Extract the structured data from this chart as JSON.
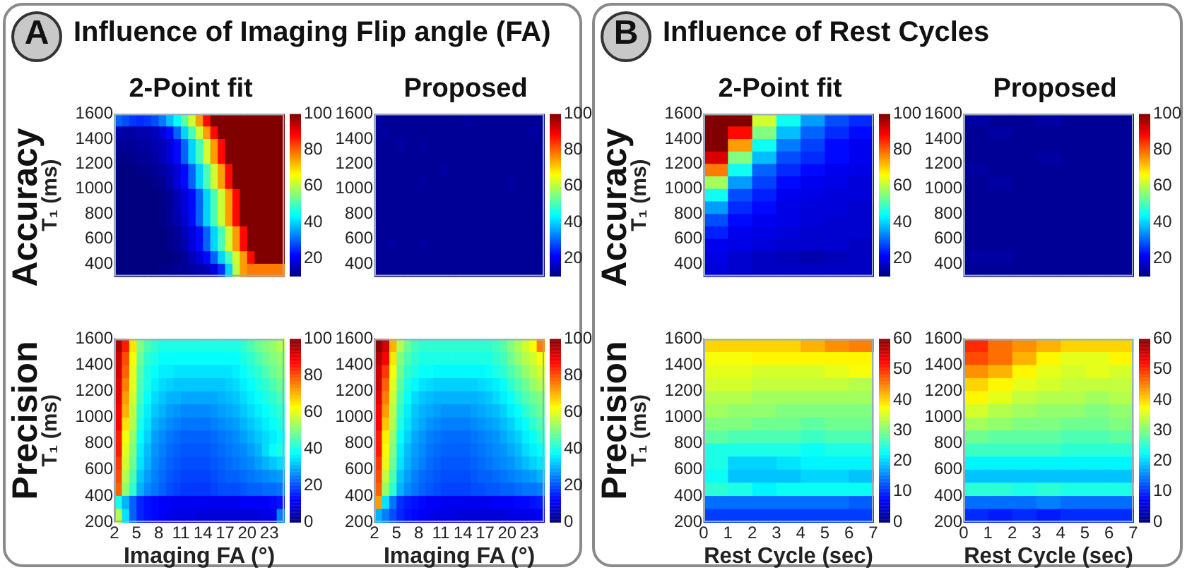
{
  "chart_data": [
    {
      "type": "heatmap",
      "title": "2-Point fit",
      "ylabel": "T₁ (ms)",
      "annotations": [
        "A",
        "Influence of Imaging Flip angle (FA)",
        "Accuracy"
      ],
      "tick_labels": "y",
      "xlim": [
        2,
        25
      ],
      "ylim": [
        300,
        1600
      ],
      "yticks": [
        400,
        600,
        800,
        1000,
        1200,
        1400,
        1600
      ],
      "clim": [
        10,
        100
      ],
      "cticks": [
        20,
        40,
        60,
        80,
        100
      ],
      "cells": [
        [
          30,
          28,
          26,
          25,
          26,
          28,
          32,
          38,
          44,
          52,
          62,
          75,
          88,
          100,
          100,
          100,
          100,
          100,
          100,
          100,
          100,
          100,
          100
        ],
        [
          14,
          13,
          13,
          14,
          14,
          15,
          18,
          22,
          30,
          40,
          50,
          62,
          75,
          88,
          100,
          100,
          100,
          100,
          100,
          100,
          100,
          100,
          100
        ],
        [
          12,
          12,
          12,
          13,
          13,
          14,
          15,
          18,
          22,
          30,
          40,
          50,
          62,
          75,
          88,
          100,
          100,
          100,
          100,
          100,
          100,
          100,
          100
        ],
        [
          11,
          11,
          11,
          12,
          12,
          13,
          15,
          18,
          22,
          30,
          40,
          50,
          62,
          75,
          88,
          100,
          100,
          100,
          100,
          100,
          100,
          100,
          100
        ],
        [
          10,
          10,
          10,
          11,
          11,
          12,
          13,
          15,
          18,
          22,
          30,
          40,
          50,
          62,
          75,
          88,
          100,
          100,
          100,
          100,
          100,
          100,
          100
        ],
        [
          10,
          10,
          10,
          10,
          10,
          11,
          12,
          14,
          18,
          22,
          30,
          40,
          50,
          62,
          75,
          88,
          100,
          100,
          100,
          100,
          100,
          100,
          100
        ],
        [
          10,
          10,
          10,
          10,
          10,
          10,
          11,
          12,
          15,
          18,
          22,
          30,
          40,
          50,
          62,
          75,
          88,
          100,
          100,
          100,
          100,
          100,
          100
        ],
        [
          10,
          10,
          10,
          10,
          10,
          10,
          11,
          12,
          15,
          18,
          22,
          30,
          40,
          50,
          62,
          75,
          88,
          100,
          100,
          100,
          100,
          100,
          100
        ],
        [
          10,
          10,
          10,
          10,
          10,
          10,
          11,
          12,
          14,
          17,
          22,
          30,
          40,
          50,
          62,
          75,
          88,
          100,
          100,
          100,
          100,
          100,
          100
        ],
        [
          10,
          10,
          10,
          10,
          10,
          10,
          10,
          11,
          12,
          15,
          18,
          22,
          30,
          40,
          50,
          62,
          75,
          88,
          100,
          100,
          100,
          100,
          100
        ],
        [
          10,
          10,
          10,
          10,
          10,
          10,
          10,
          11,
          12,
          14,
          18,
          22,
          30,
          40,
          50,
          62,
          75,
          88,
          100,
          100,
          100,
          100,
          100
        ],
        [
          10,
          10,
          10,
          10,
          10,
          10,
          10,
          10,
          11,
          12,
          15,
          18,
          22,
          30,
          40,
          50,
          62,
          75,
          88,
          100,
          100,
          100,
          100
        ],
        [
          10,
          10,
          10,
          10,
          10,
          10,
          11,
          11,
          12,
          12,
          13,
          14,
          15,
          18,
          25,
          40,
          60,
          75,
          78,
          78,
          78,
          78,
          78
        ]
      ]
    },
    {
      "type": "heatmap",
      "title": "Proposed",
      "tick_labels": "y",
      "xlim": [
        2,
        25
      ],
      "ylim": [
        300,
        1600
      ],
      "yticks": [
        400,
        600,
        800,
        1000,
        1200,
        1400,
        1600
      ],
      "clim": [
        10,
        100
      ],
      "cticks": [
        20,
        40,
        60,
        80,
        100
      ],
      "cells": [
        [
          13,
          12,
          12,
          12,
          12,
          12,
          12,
          12,
          12,
          12,
          12,
          12,
          13,
          12,
          12,
          12,
          12,
          12,
          12,
          12,
          12,
          12,
          12
        ],
        [
          12,
          13,
          12,
          12,
          12,
          12,
          12,
          12,
          12,
          12,
          12,
          12,
          12,
          12,
          12,
          12,
          12,
          12,
          12,
          12,
          12,
          13,
          12
        ],
        [
          12,
          12,
          12,
          13,
          12,
          12,
          13,
          12,
          12,
          12,
          12,
          12,
          12,
          12,
          12,
          12,
          12,
          12,
          12,
          12,
          12,
          12,
          12
        ],
        [
          12,
          12,
          12,
          12,
          12,
          12,
          12,
          12,
          12,
          12,
          12,
          12,
          12,
          12,
          12,
          12,
          12,
          12,
          12,
          12,
          12,
          12,
          12
        ],
        [
          12,
          12,
          12,
          12,
          12,
          12,
          12,
          12,
          12,
          13,
          12,
          12,
          12,
          12,
          12,
          12,
          12,
          12,
          12,
          12,
          12,
          12,
          12
        ],
        [
          12,
          12,
          12,
          12,
          12,
          12,
          13,
          12,
          12,
          12,
          12,
          12,
          12,
          12,
          12,
          12,
          12,
          12,
          13,
          12,
          12,
          12,
          12
        ],
        [
          12,
          12,
          12,
          12,
          12,
          12,
          12,
          12,
          12,
          12,
          12,
          12,
          12,
          12,
          12,
          12,
          12,
          12,
          12,
          12,
          12,
          12,
          12
        ],
        [
          12,
          12,
          12,
          12,
          12,
          12,
          12,
          12,
          12,
          12,
          12,
          12,
          12,
          12,
          12,
          12,
          12,
          12,
          12,
          12,
          12,
          12,
          12
        ],
        [
          12,
          12,
          12,
          12,
          12,
          12,
          12,
          12,
          12,
          12,
          12,
          12,
          12,
          12,
          12,
          12,
          12,
          12,
          12,
          12,
          12,
          12,
          12
        ],
        [
          12,
          12,
          12,
          12,
          12,
          12,
          12,
          12,
          12,
          12,
          12,
          12,
          12,
          12,
          12,
          12,
          12,
          12,
          12,
          12,
          12,
          12,
          12
        ],
        [
          12,
          12,
          13,
          12,
          12,
          12,
          13,
          12,
          12,
          12,
          12,
          12,
          12,
          12,
          12,
          12,
          12,
          12,
          12,
          12,
          12,
          12,
          12
        ],
        [
          12,
          12,
          12,
          12,
          12,
          12,
          12,
          12,
          12,
          12,
          12,
          12,
          12,
          12,
          12,
          12,
          12,
          12,
          12,
          12,
          12,
          12,
          12
        ],
        [
          12,
          12,
          12,
          12,
          12,
          12,
          12,
          12,
          12,
          12,
          12,
          12,
          12,
          12,
          12,
          12,
          12,
          12,
          12,
          12,
          12,
          12,
          12
        ]
      ]
    },
    {
      "type": "heatmap",
      "xlabel": "Imaging FA (°)",
      "ylabel": "T₁ (ms)",
      "annotations": [
        "Precision"
      ],
      "xlim": [
        2,
        25
      ],
      "xticks": [
        2,
        5,
        8,
        11,
        14,
        17,
        20,
        23
      ],
      "ylim": [
        200,
        1600
      ],
      "yticks": [
        200,
        400,
        600,
        800,
        1000,
        1200,
        1400,
        1600
      ],
      "clim": [
        0,
        100
      ],
      "cticks": [
        0,
        20,
        40,
        60,
        80,
        100
      ],
      "cells": [
        [
          95,
          85,
          65,
          50,
          45,
          42,
          40,
          40,
          40,
          40,
          40,
          40,
          40,
          40,
          40,
          40,
          40,
          42,
          45,
          48,
          50,
          52,
          55
        ],
        [
          92,
          80,
          62,
          48,
          42,
          40,
          38,
          38,
          38,
          38,
          38,
          38,
          38,
          38,
          38,
          38,
          38,
          40,
          42,
          45,
          48,
          50,
          52
        ],
        [
          92,
          78,
          60,
          46,
          40,
          38,
          36,
          36,
          35,
          35,
          35,
          35,
          35,
          35,
          35,
          35,
          36,
          38,
          40,
          42,
          45,
          48,
          50
        ],
        [
          90,
          75,
          60,
          45,
          40,
          36,
          34,
          33,
          32,
          32,
          32,
          32,
          32,
          32,
          32,
          33,
          34,
          36,
          38,
          40,
          42,
          45,
          48
        ],
        [
          90,
          72,
          58,
          44,
          38,
          34,
          32,
          30,
          30,
          29,
          29,
          29,
          29,
          29,
          30,
          31,
          32,
          34,
          36,
          38,
          40,
          42,
          45
        ],
        [
          88,
          70,
          56,
          42,
          36,
          32,
          30,
          28,
          27,
          26,
          26,
          26,
          26,
          27,
          28,
          29,
          30,
          32,
          34,
          36,
          38,
          40,
          42
        ],
        [
          88,
          65,
          55,
          40,
          35,
          30,
          28,
          26,
          25,
          24,
          24,
          24,
          24,
          25,
          26,
          27,
          28,
          30,
          32,
          34,
          36,
          38,
          40
        ],
        [
          85,
          62,
          52,
          38,
          33,
          28,
          26,
          24,
          23,
          22,
          22,
          22,
          22,
          23,
          24,
          25,
          26,
          28,
          30,
          32,
          34,
          36,
          38
        ],
        [
          85,
          60,
          50,
          36,
          31,
          27,
          25,
          23,
          22,
          21,
          21,
          21,
          21,
          22,
          23,
          24,
          25,
          26,
          28,
          30,
          34,
          38,
          40
        ],
        [
          82,
          58,
          48,
          35,
          30,
          26,
          24,
          22,
          21,
          20,
          20,
          20,
          20,
          21,
          22,
          23,
          24,
          25,
          26,
          28,
          30,
          32,
          34
        ],
        [
          80,
          55,
          45,
          32,
          28,
          25,
          23,
          21,
          20,
          19,
          19,
          19,
          19,
          20,
          21,
          22,
          22,
          23,
          24,
          25,
          26,
          27,
          28
        ],
        [
          78,
          52,
          42,
          30,
          26,
          24,
          22,
          20,
          19,
          18,
          18,
          18,
          18,
          19,
          20,
          20,
          20,
          21,
          22,
          22,
          23,
          23,
          24
        ],
        [
          40,
          30,
          22,
          16,
          14,
          13,
          12,
          12,
          11,
          11,
          11,
          11,
          11,
          11,
          11,
          11,
          11,
          12,
          12,
          12,
          12,
          13,
          14
        ],
        [
          55,
          35,
          22,
          16,
          14,
          13,
          12,
          11,
          10,
          10,
          10,
          9,
          9,
          9,
          9,
          9,
          9,
          9,
          9,
          9,
          10,
          10,
          25
        ]
      ]
    },
    {
      "type": "heatmap",
      "xlabel": "Imaging FA (°)",
      "xlim": [
        2,
        25
      ],
      "xticks": [
        2,
        5,
        8,
        11,
        14,
        17,
        20,
        23
      ],
      "ylim": [
        200,
        1600
      ],
      "yticks": [
        200,
        400,
        600,
        800,
        1000,
        1200,
        1400,
        1600
      ],
      "clim": [
        0,
        100
      ],
      "cticks": [
        0,
        20,
        40,
        60,
        80,
        100
      ],
      "cells": [
        [
          98,
          92,
          70,
          55,
          48,
          44,
          42,
          42,
          42,
          42,
          42,
          42,
          42,
          42,
          42,
          42,
          44,
          46,
          50,
          54,
          58,
          62,
          75
        ],
        [
          95,
          88,
          65,
          50,
          45,
          42,
          40,
          40,
          40,
          40,
          40,
          40,
          40,
          40,
          40,
          40,
          42,
          44,
          48,
          52,
          55,
          58,
          62
        ],
        [
          92,
          82,
          62,
          48,
          42,
          40,
          38,
          38,
          37,
          37,
          37,
          37,
          37,
          37,
          37,
          38,
          40,
          42,
          45,
          48,
          52,
          55,
          58
        ],
        [
          92,
          78,
          60,
          46,
          40,
          37,
          35,
          34,
          33,
          33,
          33,
          33,
          33,
          33,
          34,
          35,
          36,
          38,
          42,
          45,
          48,
          52,
          55
        ],
        [
          90,
          75,
          58,
          44,
          38,
          34,
          32,
          31,
          30,
          30,
          30,
          30,
          30,
          30,
          31,
          32,
          34,
          36,
          38,
          42,
          45,
          48,
          50
        ],
        [
          88,
          72,
          56,
          42,
          36,
          32,
          30,
          29,
          28,
          27,
          27,
          27,
          27,
          28,
          29,
          30,
          31,
          33,
          36,
          38,
          42,
          45,
          48
        ],
        [
          88,
          68,
          55,
          40,
          35,
          31,
          29,
          27,
          26,
          25,
          25,
          25,
          25,
          26,
          27,
          28,
          29,
          31,
          33,
          36,
          38,
          42,
          45
        ],
        [
          85,
          64,
          52,
          38,
          33,
          29,
          27,
          25,
          24,
          23,
          23,
          23,
          23,
          24,
          25,
          26,
          27,
          29,
          31,
          33,
          36,
          38,
          42
        ],
        [
          85,
          62,
          50,
          36,
          31,
          28,
          26,
          24,
          23,
          22,
          22,
          22,
          22,
          23,
          24,
          25,
          26,
          27,
          29,
          31,
          34,
          36,
          38
        ],
        [
          82,
          60,
          48,
          35,
          30,
          27,
          25,
          23,
          22,
          21,
          21,
          21,
          21,
          22,
          23,
          24,
          25,
          26,
          27,
          29,
          31,
          33,
          35
        ],
        [
          80,
          56,
          45,
          32,
          28,
          25,
          23,
          22,
          21,
          20,
          20,
          20,
          20,
          21,
          22,
          22,
          23,
          24,
          25,
          26,
          27,
          28,
          30
        ],
        [
          78,
          52,
          42,
          30,
          26,
          24,
          22,
          21,
          20,
          19,
          19,
          19,
          19,
          20,
          20,
          21,
          21,
          22,
          22,
          23,
          24,
          24,
          25
        ],
        [
          72,
          35,
          24,
          17,
          15,
          14,
          13,
          12,
          12,
          11,
          11,
          11,
          11,
          11,
          11,
          11,
          12,
          12,
          12,
          13,
          13,
          14,
          15
        ],
        [
          30,
          25,
          20,
          16,
          14,
          13,
          12,
          11,
          10,
          10,
          10,
          9,
          9,
          9,
          9,
          9,
          9,
          9,
          10,
          10,
          10,
          11,
          12
        ]
      ]
    },
    {
      "type": "heatmap",
      "title": "2-Point fit",
      "ylabel": "T₁ (ms)",
      "annotations": [
        "B",
        "Influence of Rest Cycles",
        "Accuracy"
      ],
      "tick_labels": "y",
      "xlim": [
        0,
        7
      ],
      "ylim": [
        300,
        1600
      ],
      "yticks": [
        400,
        600,
        800,
        1000,
        1200,
        1400,
        1600
      ],
      "clim": [
        10,
        100
      ],
      "cticks": [
        20,
        40,
        60,
        80,
        100
      ],
      "cells": [
        [
          100,
          100,
          62,
          45,
          35,
          28,
          25
        ],
        [
          100,
          88,
          55,
          38,
          30,
          25,
          22
        ],
        [
          100,
          75,
          45,
          32,
          27,
          22,
          20
        ],
        [
          92,
          55,
          38,
          28,
          25,
          22,
          20
        ],
        [
          78,
          45,
          30,
          25,
          22,
          20,
          19
        ],
        [
          58,
          35,
          27,
          22,
          20,
          19,
          18
        ],
        [
          45,
          28,
          24,
          20,
          19,
          18,
          18
        ],
        [
          35,
          25,
          22,
          19,
          18,
          18,
          17
        ],
        [
          28,
          22,
          20,
          19,
          18,
          17,
          17
        ],
        [
          24,
          20,
          19,
          18,
          17,
          17,
          17
        ],
        [
          20,
          19,
          18,
          17,
          17,
          17,
          16
        ],
        [
          19,
          17,
          16,
          15,
          14,
          15,
          16
        ],
        [
          18,
          17,
          16,
          16,
          16,
          16,
          16
        ]
      ]
    },
    {
      "type": "heatmap",
      "title": "Proposed",
      "tick_labels": "y",
      "xlim": [
        0,
        7
      ],
      "ylim": [
        300,
        1600
      ],
      "yticks": [
        400,
        600,
        800,
        1000,
        1200,
        1400,
        1600
      ],
      "clim": [
        10,
        100
      ],
      "cticks": [
        20,
        40,
        60,
        80,
        100
      ],
      "cells": [
        [
          13,
          12,
          12,
          13,
          12,
          12,
          12
        ],
        [
          12,
          13,
          12,
          12,
          12,
          12,
          12
        ],
        [
          12,
          12,
          12,
          12,
          12,
          12,
          12
        ],
        [
          12,
          12,
          12,
          13,
          12,
          12,
          12
        ],
        [
          13,
          12,
          12,
          12,
          12,
          12,
          12
        ],
        [
          12,
          13,
          12,
          12,
          12,
          12,
          12
        ],
        [
          12,
          12,
          12,
          12,
          12,
          12,
          12
        ],
        [
          12,
          12,
          12,
          12,
          12,
          12,
          12
        ],
        [
          12,
          12,
          12,
          12,
          12,
          12,
          12
        ],
        [
          12,
          12,
          12,
          12,
          12,
          12,
          12
        ],
        [
          12,
          12,
          12,
          12,
          12,
          12,
          12
        ],
        [
          13,
          13,
          12,
          12,
          12,
          12,
          12
        ],
        [
          12,
          12,
          12,
          12,
          12,
          12,
          12
        ]
      ]
    },
    {
      "type": "heatmap",
      "xlabel": "Rest Cycle (sec)",
      "ylabel": "T₁ (ms)",
      "annotations": [
        "Precision"
      ],
      "xlim": [
        0,
        7
      ],
      "xticks": [
        0,
        1,
        2,
        3,
        4,
        5,
        6,
        7
      ],
      "ylim": [
        200,
        1600
      ],
      "yticks": [
        200,
        400,
        600,
        800,
        1000,
        1200,
        1400,
        1600
      ],
      "clim": [
        0,
        60
      ],
      "cticks": [
        0,
        10,
        20,
        30,
        40,
        50,
        60
      ],
      "cells": [
        [
          40,
          40,
          40,
          40,
          42,
          44,
          45
        ],
        [
          37,
          37,
          38,
          38,
          38,
          38,
          38
        ],
        [
          36,
          36,
          35,
          35,
          35,
          36,
          37
        ],
        [
          35,
          35,
          34,
          34,
          34,
          34,
          33
        ],
        [
          33,
          33,
          32,
          32,
          32,
          32,
          32
        ],
        [
          32,
          31,
          31,
          30,
          30,
          30,
          30
        ],
        [
          30,
          30,
          29,
          29,
          28,
          29,
          29
        ],
        [
          28,
          27,
          27,
          27,
          26,
          27,
          27
        ],
        [
          24,
          24,
          24,
          24,
          23,
          24,
          24
        ],
        [
          24,
          20,
          20,
          21,
          22,
          22,
          22
        ],
        [
          23,
          19,
          19,
          19,
          20,
          20,
          19
        ],
        [
          25,
          24,
          22,
          23,
          23,
          23,
          23
        ],
        [
          14,
          14,
          14,
          14,
          14,
          14,
          13
        ],
        [
          11,
          11,
          11,
          11,
          11,
          11,
          11
        ]
      ]
    },
    {
      "type": "heatmap",
      "xlabel": "Rest Cycle (sec)",
      "xlim": [
        0,
        7
      ],
      "xticks": [
        0,
        1,
        2,
        3,
        4,
        5,
        6,
        7
      ],
      "ylim": [
        200,
        1600
      ],
      "yticks": [
        200,
        400,
        600,
        800,
        1000,
        1200,
        1400,
        1600
      ],
      "clim": [
        0,
        60
      ],
      "cticks": [
        0,
        10,
        20,
        30,
        40,
        50,
        60
      ],
      "cells": [
        [
          50,
          46,
          44,
          42,
          40,
          40,
          40
        ],
        [
          48,
          46,
          42,
          38,
          36,
          36,
          38
        ],
        [
          44,
          42,
          38,
          36,
          35,
          36,
          35
        ],
        [
          40,
          38,
          36,
          35,
          34,
          34,
          34
        ],
        [
          38,
          36,
          34,
          33,
          33,
          32,
          33
        ],
        [
          35,
          33,
          32,
          31,
          31,
          30,
          31
        ],
        [
          32,
          31,
          30,
          30,
          29,
          29,
          30
        ],
        [
          29,
          28,
          28,
          28,
          27,
          27,
          28
        ],
        [
          26,
          26,
          26,
          26,
          25,
          25,
          25
        ],
        [
          22,
          22,
          22,
          22,
          22,
          22,
          22
        ],
        [
          19,
          19,
          19,
          19,
          19,
          19,
          19
        ],
        [
          25,
          25,
          24,
          25,
          24,
          24,
          24
        ],
        [
          14,
          14,
          14,
          15,
          14,
          14,
          14
        ],
        [
          10,
          9,
          10,
          9,
          10,
          10,
          10
        ]
      ]
    }
  ]
}
